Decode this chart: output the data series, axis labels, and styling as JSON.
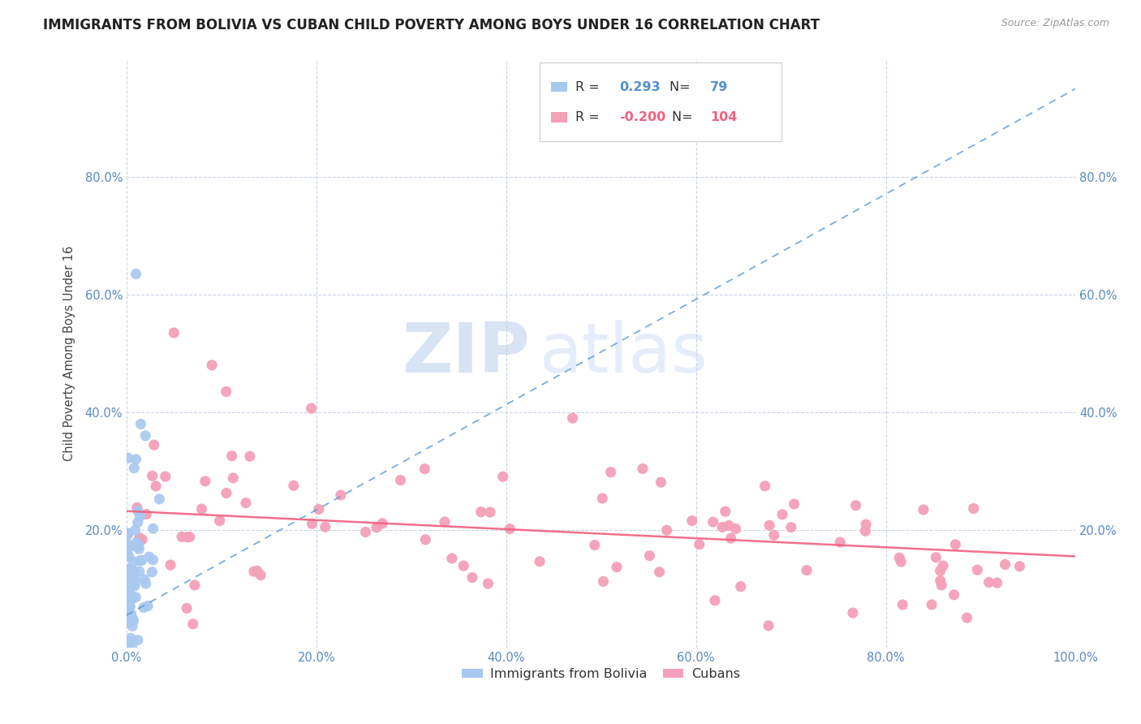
{
  "title": "IMMIGRANTS FROM BOLIVIA VS CUBAN CHILD POVERTY AMONG BOYS UNDER 16 CORRELATION CHART",
  "source": "Source: ZipAtlas.com",
  "ylabel": "Child Poverty Among Boys Under 16",
  "xlim": [
    0,
    1.0
  ],
  "ylim": [
    0,
    1.0
  ],
  "xtick_positions": [
    0.0,
    0.2,
    0.4,
    0.6,
    0.8,
    1.0
  ],
  "xtick_labels": [
    "0.0%",
    "20.0%",
    "40.0%",
    "60.0%",
    "80.0%",
    "100.0%"
  ],
  "ytick_positions": [
    0.0,
    0.2,
    0.4,
    0.6,
    0.8
  ],
  "ytick_labels": [
    "",
    "20.0%",
    "40.0%",
    "60.0%",
    "80.0%"
  ],
  "bolivia_R": 0.293,
  "bolivia_N": 79,
  "cuban_R": -0.2,
  "cuban_N": 104,
  "bolivia_color": "#a8c8f0",
  "cuban_color": "#f4a0b8",
  "bolivia_line_color": "#5090d0",
  "cuban_line_color": "#f06080",
  "legend_bolivia": "Immigrants from Bolivia",
  "legend_cuban": "Cubans",
  "watermark_zip": "ZIP",
  "watermark_atlas": "atlas",
  "background_color": "#ffffff",
  "grid_color": "#c8d4e8",
  "title_color": "#222222",
  "title_fontsize": 12,
  "axis_tick_color": "#5a8abf",
  "axis_tick_fontsize": 10.5,
  "seed": 42,
  "bolivia_trend_x0": 0.0,
  "bolivia_trend_y0": 0.055,
  "bolivia_trend_x1": 1.0,
  "bolivia_trend_y1": 0.95,
  "cuban_trend_x0": 0.0,
  "cuban_trend_y0": 0.232,
  "cuban_trend_x1": 1.0,
  "cuban_trend_y1": 0.155
}
